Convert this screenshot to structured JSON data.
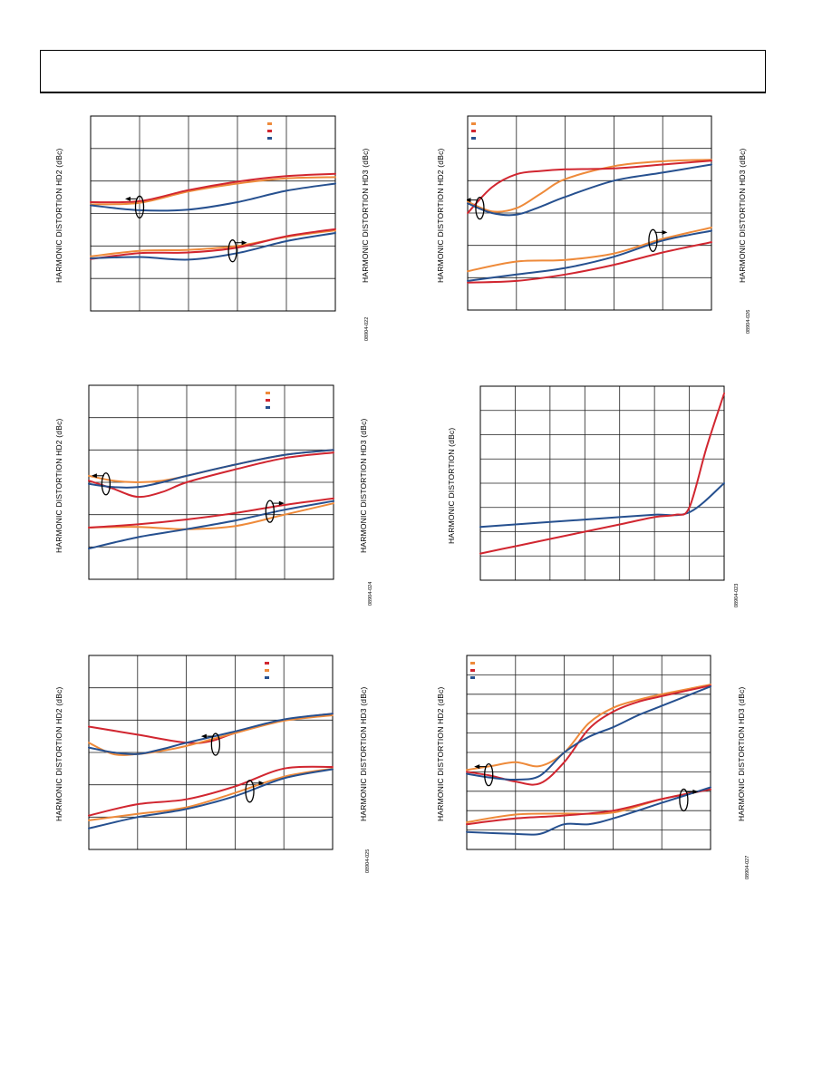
{
  "colors": {
    "orange": "#ee8a3a",
    "red": "#d12630",
    "blue": "#26508f",
    "grid": "#222222"
  },
  "chart_data": [
    {
      "id": "c1",
      "type": "line",
      "grid": true,
      "legend": "top-right",
      "ylabel_left": "HARMONIC DISTORTION HD2 (dBc)",
      "ylabel_right": "HARMONIC DISTORTION HD3 (dBc)",
      "figure_id": "08904-022",
      "xlim": [
        0,
        5
      ],
      "ylim": [
        0,
        6
      ],
      "series": [
        {
          "color": "orange",
          "x": [
            0,
            1,
            2,
            3,
            4,
            5
          ],
          "y": [
            3.28,
            3.33,
            3.68,
            3.92,
            4.08,
            4.12
          ]
        },
        {
          "color": "red",
          "x": [
            0,
            1,
            2,
            3,
            4,
            5
          ],
          "y": [
            3.35,
            3.38,
            3.72,
            3.98,
            4.15,
            4.22
          ]
        },
        {
          "color": "blue",
          "x": [
            0,
            1,
            2,
            3,
            4,
            5
          ],
          "y": [
            3.25,
            3.1,
            3.12,
            3.35,
            3.7,
            3.92
          ]
        },
        {
          "color": "orange",
          "x": [
            0,
            1,
            2,
            3,
            4,
            5
          ],
          "y": [
            1.68,
            1.85,
            1.88,
            2.0,
            2.28,
            2.48
          ]
        },
        {
          "color": "red",
          "x": [
            0,
            1,
            2,
            3,
            4,
            5
          ],
          "y": [
            1.6,
            1.78,
            1.8,
            1.95,
            2.3,
            2.52
          ]
        },
        {
          "color": "blue",
          "x": [
            0,
            1,
            2,
            3,
            4,
            5
          ],
          "y": [
            1.62,
            1.66,
            1.58,
            1.78,
            2.15,
            2.4
          ]
        }
      ],
      "annotations": [
        {
          "ellipse": [
            1.0,
            3.2
          ],
          "arrow": "left"
        },
        {
          "ellipse": [
            2.9,
            1.85
          ],
          "arrow": "right"
        }
      ]
    },
    {
      "id": "c2",
      "type": "line",
      "grid": true,
      "legend": "top-left",
      "ylabel_left": "HARMONIC DISTORTION HD2 (dBc)",
      "ylabel_right": "HARMONIC DISTORTION HD3 (dBc)",
      "figure_id": "08904-026",
      "xlim": [
        0,
        5
      ],
      "ylim": [
        0,
        6
      ],
      "series": [
        {
          "color": "orange",
          "x": [
            0,
            0.5,
            1,
            1.5,
            2,
            3,
            4,
            5
          ],
          "y": [
            3.35,
            3.05,
            3.15,
            3.6,
            4.05,
            4.45,
            4.6,
            4.65
          ]
        },
        {
          "color": "red",
          "x": [
            0,
            0.5,
            1,
            1.5,
            2,
            3,
            4,
            5
          ],
          "y": [
            3.0,
            3.8,
            4.2,
            4.3,
            4.35,
            4.38,
            4.5,
            4.62
          ]
        },
        {
          "color": "blue",
          "x": [
            0,
            0.5,
            1,
            1.5,
            2,
            3,
            4,
            5
          ],
          "y": [
            3.3,
            3.0,
            2.95,
            3.2,
            3.5,
            4.0,
            4.25,
            4.5
          ]
        },
        {
          "color": "orange",
          "x": [
            0,
            1,
            2,
            3,
            4,
            5
          ],
          "y": [
            1.2,
            1.5,
            1.55,
            1.75,
            2.2,
            2.55
          ]
        },
        {
          "color": "red",
          "x": [
            0,
            1,
            2,
            3,
            4,
            5
          ],
          "y": [
            0.85,
            0.9,
            1.1,
            1.4,
            1.78,
            2.1
          ]
        },
        {
          "color": "blue",
          "x": [
            0,
            1,
            2,
            3,
            4,
            5
          ],
          "y": [
            0.9,
            1.1,
            1.3,
            1.65,
            2.15,
            2.45
          ]
        }
      ],
      "annotations": [
        {
          "ellipse": [
            0.25,
            3.15
          ],
          "arrow": "left"
        },
        {
          "ellipse": [
            3.8,
            2.15
          ],
          "arrow": "right"
        }
      ]
    },
    {
      "id": "c3",
      "type": "line",
      "grid": true,
      "legend": "top-right",
      "ylabel_left": "HARMONIC DISTORTION HD2 (dBc)",
      "ylabel_right": "HARMONIC DISTORTION HD3 (dBc)",
      "figure_id": "08904-024",
      "xlim": [
        0,
        5
      ],
      "ylim": [
        0,
        6
      ],
      "series": [
        {
          "color": "orange",
          "x": [
            0,
            0.5,
            1,
            1.5,
            2,
            3,
            4,
            5
          ],
          "y": [
            3.2,
            3.05,
            3.0,
            3.05,
            3.2,
            3.55,
            3.85,
            4.0
          ]
        },
        {
          "color": "red",
          "x": [
            0,
            0.5,
            1,
            1.5,
            2,
            3,
            4,
            5
          ],
          "y": [
            3.05,
            2.8,
            2.55,
            2.7,
            3.0,
            3.4,
            3.75,
            3.92
          ]
        },
        {
          "color": "blue",
          "x": [
            0,
            0.5,
            1,
            1.5,
            2,
            3,
            4,
            5
          ],
          "y": [
            2.95,
            2.85,
            2.85,
            3.0,
            3.2,
            3.55,
            3.85,
            4.0
          ]
        },
        {
          "color": "orange",
          "x": [
            0,
            1,
            2,
            3,
            4,
            5
          ],
          "y": [
            1.6,
            1.62,
            1.55,
            1.65,
            2.0,
            2.35
          ]
        },
        {
          "color": "red",
          "x": [
            0,
            1,
            2,
            3,
            4,
            5
          ],
          "y": [
            1.6,
            1.7,
            1.85,
            2.05,
            2.3,
            2.5
          ]
        },
        {
          "color": "blue",
          "x": [
            0,
            1,
            2,
            3,
            4,
            5
          ],
          "y": [
            0.95,
            1.3,
            1.55,
            1.82,
            2.15,
            2.42
          ]
        }
      ],
      "annotations": [
        {
          "ellipse": [
            0.35,
            2.95
          ],
          "arrow": "left"
        },
        {
          "ellipse": [
            3.7,
            2.1
          ],
          "arrow": "right"
        }
      ]
    },
    {
      "id": "c4",
      "type": "line",
      "grid": true,
      "ylabel_left": "HARMONIC DISTORTION (dBc)",
      "figure_id": "08904-023",
      "xlim": [
        0,
        7
      ],
      "ylim": [
        0,
        8
      ],
      "series": [
        {
          "color": "blue",
          "x": [
            0,
            1,
            2,
            3,
            4,
            5,
            6,
            7
          ],
          "y": [
            2.2,
            2.3,
            2.4,
            2.5,
            2.6,
            2.7,
            2.8,
            4.0
          ]
        },
        {
          "color": "red",
          "x": [
            0,
            1,
            2,
            3,
            4,
            5,
            5.6,
            6,
            6.5,
            7
          ],
          "y": [
            1.1,
            1.4,
            1.7,
            2.0,
            2.3,
            2.6,
            2.7,
            3.0,
            5.5,
            7.7
          ]
        }
      ]
    },
    {
      "id": "c5",
      "type": "line",
      "grid": true,
      "legend": "top-right",
      "ylabel_left": "HARMONIC DISTORTION HD2 (dBc)",
      "ylabel_right": "HARMONIC DISTORTION HD3 (dBc)",
      "figure_id": "08904-025",
      "xlim": [
        0,
        5
      ],
      "ylim": [
        0,
        6
      ],
      "series": [
        {
          "color": "red",
          "x": [
            0,
            1,
            2,
            2.5,
            3,
            4,
            5
          ],
          "y": [
            3.8,
            3.55,
            3.3,
            3.35,
            3.6,
            4.0,
            4.2
          ]
        },
        {
          "color": "orange",
          "x": [
            0,
            0.5,
            1,
            1.5,
            2,
            3,
            4,
            5
          ],
          "y": [
            3.3,
            2.95,
            2.95,
            3.05,
            3.2,
            3.6,
            3.98,
            4.15
          ]
        },
        {
          "color": "blue",
          "x": [
            0,
            0.5,
            1,
            1.5,
            2,
            3,
            4,
            5
          ],
          "y": [
            3.15,
            3.0,
            2.95,
            3.1,
            3.3,
            3.65,
            4.02,
            4.2
          ]
        },
        {
          "color": "red",
          "x": [
            0,
            1,
            2,
            3,
            4,
            5
          ],
          "y": [
            1.05,
            1.4,
            1.55,
            1.95,
            2.5,
            2.55
          ]
        },
        {
          "color": "orange",
          "x": [
            0,
            1,
            2,
            3,
            4,
            5
          ],
          "y": [
            0.9,
            1.1,
            1.3,
            1.75,
            2.25,
            2.5
          ]
        },
        {
          "color": "blue",
          "x": [
            0,
            1,
            2,
            3,
            4,
            5
          ],
          "y": [
            0.65,
            1.0,
            1.25,
            1.65,
            2.2,
            2.48
          ]
        }
      ],
      "annotations": [
        {
          "ellipse": [
            2.6,
            3.25
          ],
          "arrow": "left"
        },
        {
          "ellipse": [
            3.3,
            1.8
          ],
          "arrow": "right"
        }
      ]
    },
    {
      "id": "c6",
      "type": "line",
      "grid": true,
      "legend": "top-left",
      "ylabel_left": "HARMONIC DISTORTION HD2 (dBc)",
      "ylabel_right": "HARMONIC DISTORTION HD3 (dBc)",
      "figure_id": "08904-027",
      "xlim": [
        0,
        5
      ],
      "ylim": [
        0,
        10
      ],
      "series": [
        {
          "color": "orange",
          "x": [
            0,
            0.5,
            1,
            1.5,
            2,
            2.5,
            3,
            3.5,
            4,
            5
          ],
          "y": [
            4.1,
            4.3,
            4.5,
            4.3,
            5.0,
            6.5,
            7.3,
            7.7,
            8.0,
            8.5
          ]
        },
        {
          "color": "red",
          "x": [
            0,
            0.5,
            1,
            1.5,
            2,
            2.5,
            3,
            3.5,
            4,
            5
          ],
          "y": [
            4.0,
            3.8,
            3.5,
            3.4,
            4.5,
            6.2,
            7.1,
            7.6,
            7.9,
            8.45
          ]
        },
        {
          "color": "blue",
          "x": [
            0,
            0.5,
            1,
            1.5,
            2,
            2.5,
            3,
            3.5,
            4,
            5
          ],
          "y": [
            3.9,
            3.7,
            3.6,
            3.8,
            5.0,
            5.8,
            6.3,
            6.9,
            7.4,
            8.4
          ]
        },
        {
          "color": "orange",
          "x": [
            0,
            1,
            2,
            3,
            4,
            5
          ],
          "y": [
            1.4,
            1.8,
            1.85,
            1.9,
            2.6,
            3.1
          ]
        },
        {
          "color": "red",
          "x": [
            0,
            1,
            2,
            3,
            4,
            5
          ],
          "y": [
            1.3,
            1.6,
            1.75,
            2.0,
            2.6,
            3.1
          ]
        },
        {
          "color": "blue",
          "x": [
            0,
            1,
            1.5,
            2,
            2.5,
            3,
            4,
            5
          ],
          "y": [
            0.9,
            0.8,
            0.8,
            1.3,
            1.3,
            1.6,
            2.4,
            3.2
          ]
        }
      ],
      "annotations": [
        {
          "ellipse": [
            0.45,
            3.85
          ],
          "arrow": "left"
        },
        {
          "ellipse": [
            4.45,
            2.55
          ],
          "arrow": "right"
        }
      ]
    }
  ]
}
